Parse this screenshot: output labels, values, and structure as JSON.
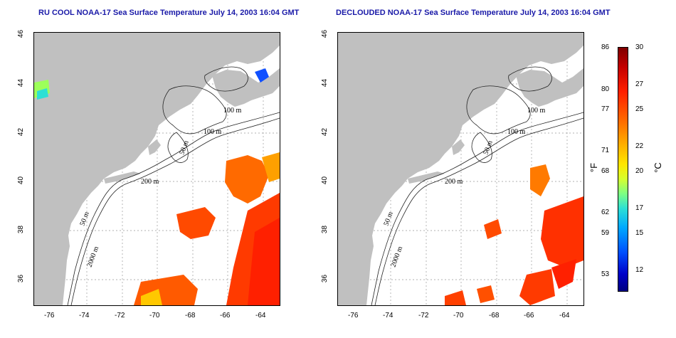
{
  "titles": {
    "left": "RU COOL NOAA-17 Sea Surface Temperature July 14, 2003 16:04 GMT",
    "right": "DECLOUDED NOAA-17 Sea Surface Temperature July 14, 2003 16:04 GMT"
  },
  "axes": {
    "lon_ticks": [
      "-76",
      "-74",
      "-72",
      "-70",
      "-68",
      "-66",
      "-64"
    ],
    "lat_ticks": [
      "46",
      "44",
      "42",
      "40",
      "38",
      "36"
    ]
  },
  "contour_labels": {
    "left": [
      "100 m",
      "100 m",
      "50 m",
      "200 m",
      "50 m",
      "2000 m"
    ],
    "right": [
      "100 m",
      "100 m",
      "50 m",
      "200 m",
      "50 m",
      "2000 m"
    ]
  },
  "colorbar": {
    "fahrenheit": [
      "86",
      "80",
      "77",
      "71",
      "68",
      "62",
      "59",
      "53"
    ],
    "celsius": [
      "30",
      "27",
      "25",
      "22",
      "20",
      "17",
      "15",
      "12"
    ],
    "fahrenheit_unit": "°F",
    "celsius_unit": "°C",
    "colors": [
      "#7f0000",
      "#ff1f00",
      "#ffb000",
      "#ffe600",
      "#7dff83",
      "#00a8ff",
      "#0000c8"
    ]
  },
  "colors": {
    "land": "#c0c0c0",
    "title": "#1a1aa8",
    "grid": "#999999"
  }
}
